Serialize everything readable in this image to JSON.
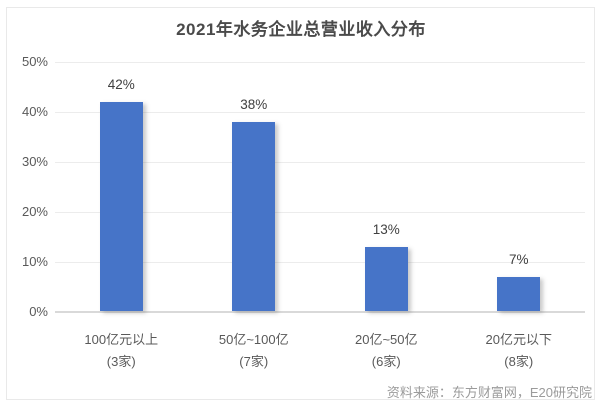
{
  "chart_data": {
    "type": "bar",
    "title": "2021年水务企业总营业收入分布",
    "categories": [
      "100亿元以上",
      "50亿~100亿",
      "20亿~50亿",
      "20亿元以下"
    ],
    "category_counts": [
      "(3家)",
      "(7家)",
      "(6家)",
      "(8家)"
    ],
    "values": [
      42,
      38,
      13,
      7
    ],
    "value_labels": [
      "42%",
      "38%",
      "13%",
      "7%"
    ],
    "ylim": [
      0,
      50
    ],
    "yticks": [
      0,
      10,
      20,
      30,
      40,
      50
    ],
    "ytick_labels": [
      "0%",
      "10%",
      "20%",
      "30%",
      "40%",
      "50%"
    ],
    "grid": true,
    "legend": false,
    "bar_color": "#4674c8",
    "source": "资料来源：东方财富网，E20研究院"
  },
  "colors": {
    "bar": "#4674c8",
    "title_text": "#4a4a4a",
    "axis_text": "#595959",
    "value_text": "#404040",
    "source_text": "#9b9b9b",
    "gridline": "#ececec",
    "baseline": "#d9d9d9",
    "card_border": "#e9e9e9"
  }
}
